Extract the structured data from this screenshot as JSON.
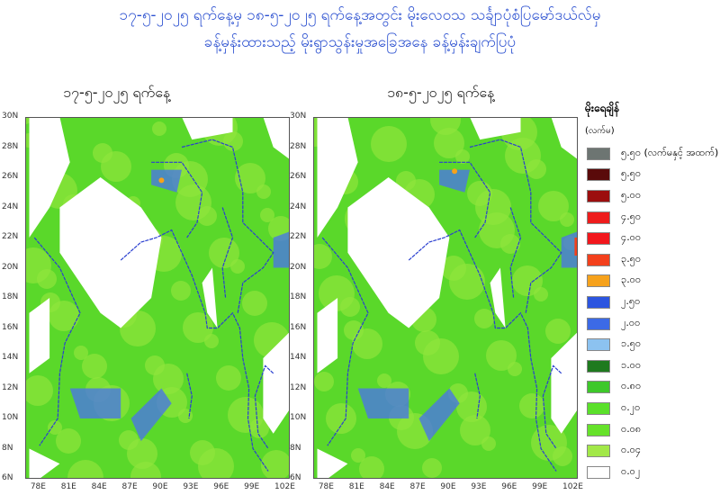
{
  "title": {
    "line1": "၁၇-၅-၂၀၂၅ ရက်နေ့မှ ၁၈-၅-၂၀၂၅ ရက်နေ့အတွင်း မိုးလေဝသ သင်္ချာပုံစံပြမော်ဒယ်လ်မှ",
    "line2": "ခန့်မှန်းထားသည့် မိုးရွာသွန်းမှုအခြေအနေ ခန့်မှန်းချက်ပြပုံ"
  },
  "panels": [
    {
      "title": "၁၇-၅-၂၀၂၅ ရက်နေ့"
    },
    {
      "title": "၁၈-၅-၂၀၂၅ ရက်နေ့"
    }
  ],
  "axes": {
    "lat_ticks": [
      "30N",
      "28N",
      "26N",
      "24N",
      "22N",
      "20N",
      "18N",
      "16N",
      "14N",
      "12N",
      "10N",
      "8N",
      "6N"
    ],
    "lon_ticks": [
      "78E",
      "81E",
      "84E",
      "87E",
      "90E",
      "93E",
      "96E",
      "99E",
      "102E"
    ]
  },
  "legend": {
    "title": "မိုးရေချိန်",
    "unit": "(လက်မ)",
    "items": [
      {
        "label": "၅.၅၀ (လက်မနှင့် အထက်)",
        "color": "#6d7572"
      },
      {
        "label": "၅.၅၀",
        "color": "#5a0a0a"
      },
      {
        "label": "၅.၀၀",
        "color": "#9c0e0e"
      },
      {
        "label": "၄.၅၀",
        "color": "#ee1c1c"
      },
      {
        "label": "၄.၀၀",
        "color": "#f2161c"
      },
      {
        "label": "၃.၅၀",
        "color": "#f3401c"
      },
      {
        "label": "၃.၀၀",
        "color": "#f6a21c"
      },
      {
        "label": "၂.၅၀",
        "color": "#2c55e0"
      },
      {
        "label": "၂.၀၀",
        "color": "#3c6ae6"
      },
      {
        "label": "၁.၅၀",
        "color": "#8cc2f0"
      },
      {
        "label": "၁.၀၀",
        "color": "#1e7a1e"
      },
      {
        "label": "၀.၈၀",
        "color": "#3ec82a"
      },
      {
        "label": "၀.၂၀",
        "color": "#5ae02a"
      },
      {
        "label": "၀.၀၈",
        "color": "#66e22a"
      },
      {
        "label": "၀.၀၄",
        "color": "#a2e848"
      },
      {
        "label": "၀.၀၂",
        "color": "#ffffff"
      }
    ]
  }
}
